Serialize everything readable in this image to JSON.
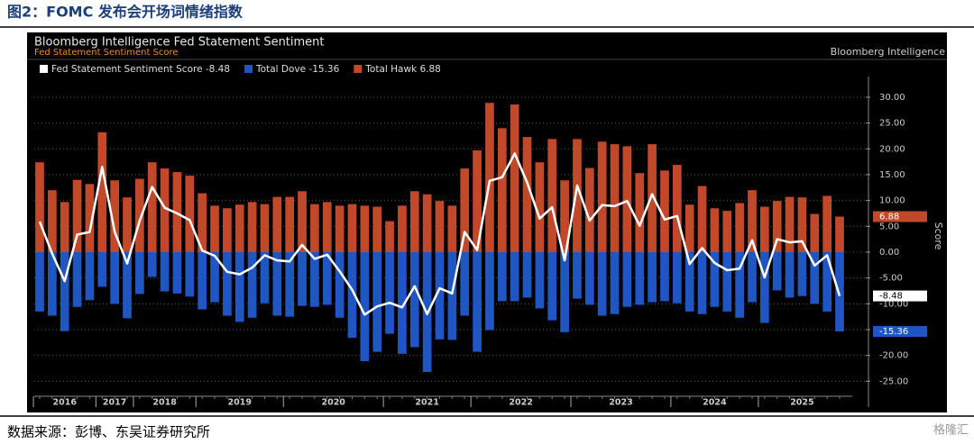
{
  "header": "图2：FOMC 发布会开场词情绪指数",
  "source": "数据来源：彭博、东吴证券研究所",
  "watermark": "格隆汇",
  "chart_data": {
    "type": "bar_line",
    "title": "Bloomberg Intelligence Fed Statement Sentiment",
    "subtitle": "Fed Statement Sentiment Score",
    "brand": "Bloomberg Intelligence",
    "y_axis_label": "Score",
    "categories": [
      "2016",
      null,
      null,
      null,
      null,
      "2017",
      null,
      null,
      "2018",
      null,
      null,
      null,
      null,
      "2019",
      null,
      null,
      null,
      null,
      null,
      null,
      "2020",
      null,
      null,
      null,
      null,
      null,
      null,
      null,
      "2021",
      null,
      null,
      null,
      null,
      null,
      null,
      "2022",
      null,
      null,
      null,
      null,
      null,
      null,
      null,
      "2023",
      null,
      null,
      null,
      null,
      null,
      null,
      null,
      "2024",
      null,
      null,
      null,
      null,
      null,
      null,
      "2025",
      null,
      null,
      null,
      null,
      null,
      null
    ],
    "series": [
      {
        "name": "Fed Statement Sentiment Score -8.48",
        "kind": "line",
        "color": "#ffffff",
        "values": [
          5.9,
          -0.3,
          -5.6,
          3.4,
          3.9,
          16.5,
          3.9,
          -2.2,
          6.1,
          12.6,
          8.6,
          7.5,
          6.2,
          0.3,
          -0.7,
          -3.8,
          -4.3,
          -3,
          -0.6,
          -1.6,
          -1.8,
          1.4,
          -1.3,
          -0.5,
          -3.7,
          -7.3,
          -12.1,
          -10.5,
          -9.8,
          -10.7,
          -6.6,
          -12,
          -7,
          -8,
          3.9,
          0.4,
          13.8,
          14.5,
          19.1,
          13.5,
          6.5,
          8.7,
          -1.6,
          12.9,
          6.1,
          9.1,
          8.9,
          9.9,
          5.1,
          11.2,
          6.3,
          7,
          -2.3,
          0.8,
          -2.1,
          -3.5,
          -3.2,
          2.3,
          -4.9,
          2.5,
          1.9,
          2.1,
          -2.6,
          -0.6,
          -8.48
        ]
      },
      {
        "name": "Total Dove -15.36",
        "kind": "bar",
        "color": "#1f56c3",
        "values": [
          -11.5,
          -12.3,
          -15.3,
          -10.6,
          -9.3,
          -6.7,
          -10,
          -12.8,
          -8.1,
          -4.8,
          -7.6,
          -8,
          -8.6,
          -11.1,
          -9.7,
          -12.3,
          -13.5,
          -12.7,
          -9.9,
          -12.3,
          -12.5,
          -10.4,
          -10.6,
          -10.2,
          -12.7,
          -16.6,
          -21.1,
          -19.3,
          -15.8,
          -19.7,
          -18.4,
          -23.2,
          -16.9,
          -17,
          -12.3,
          -19.3,
          -15.1,
          -9.5,
          -9.5,
          -8.8,
          -10.9,
          -13.2,
          -15.5,
          -9,
          -10.2,
          -12.3,
          -12,
          -10.6,
          -10.2,
          -9.7,
          -9.5,
          -9.9,
          -11.5,
          -12,
          -10.6,
          -11.5,
          -12.7,
          -9.7,
          -13.7,
          -7.4,
          -8.8,
          -8.5,
          -10,
          -11.5,
          -15.36
        ]
      },
      {
        "name": "Total Hawk 6.88",
        "kind": "bar",
        "color": "#c1492a",
        "values": [
          17.4,
          12,
          9.7,
          14,
          13.2,
          23.2,
          13.9,
          10.6,
          14.2,
          17.4,
          16.2,
          15.5,
          14.8,
          11.4,
          9,
          8.5,
          9.2,
          9.7,
          9.3,
          10.7,
          10.7,
          11.8,
          9.3,
          9.7,
          9,
          9.3,
          9,
          8.8,
          6,
          9,
          11.8,
          11.2,
          9.9,
          9,
          16.2,
          19.7,
          28.9,
          24,
          28.6,
          22.3,
          17.4,
          21.9,
          13.9,
          21.9,
          16.3,
          21.4,
          20.9,
          20.5,
          15.3,
          20.9,
          15.8,
          16.9,
          9.2,
          12.8,
          8.5,
          8,
          9.5,
          12,
          8.8,
          9.9,
          10.7,
          10.6,
          7.4,
          10.9,
          6.88
        ]
      }
    ],
    "ylim": [
      -30,
      34
    ],
    "yticks": [
      {
        "value": -25,
        "label": "-25.00"
      },
      {
        "value": -20,
        "label": "-20.00"
      },
      {
        "value": -15,
        "label": "-15.00"
      },
      {
        "value": -10,
        "label": "-10.00"
      },
      {
        "value": -5,
        "label": "-5.00"
      },
      {
        "value": 0,
        "label": "0.00"
      },
      {
        "value": 5,
        "label": "5.00"
      },
      {
        "value": 10,
        "label": "10.00"
      },
      {
        "value": 15,
        "label": "15.00"
      },
      {
        "value": 20,
        "label": "20.00"
      },
      {
        "value": 25,
        "label": "25.00"
      },
      {
        "value": 30,
        "label": "30.00"
      }
    ],
    "grid": true
  }
}
